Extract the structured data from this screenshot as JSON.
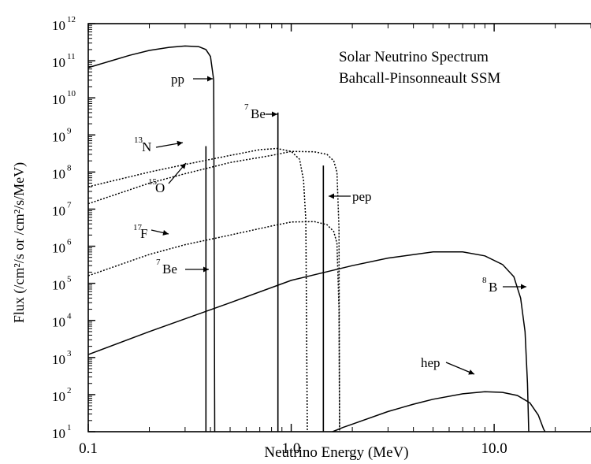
{
  "chart_data": {
    "type": "line",
    "title": "Solar Neutrino Spectrum",
    "subtitle": "Bahcall-Pinsonneault SSM",
    "xlabel": "Neutrino Energy (MeV)",
    "ylabel": "Flux (/cm²/s or /cm²/s/MeV)",
    "x_scale": "log",
    "y_scale": "log",
    "xlim": [
      0.1,
      30
    ],
    "ylim": [
      10,
      1000000000000.0
    ],
    "grid": false,
    "legend": "none",
    "x_ticks": [
      {
        "value": 0.1,
        "label": "0.1"
      },
      {
        "value": 1,
        "label": "1.0"
      },
      {
        "value": 10,
        "label": "10.0"
      }
    ],
    "y_ticks": [
      {
        "value": 10.0,
        "base": "10",
        "exp": "1"
      },
      {
        "value": 100.0,
        "base": "10",
        "exp": "2"
      },
      {
        "value": 1000.0,
        "base": "10",
        "exp": "3"
      },
      {
        "value": 10000.0,
        "base": "10",
        "exp": "4"
      },
      {
        "value": 100000.0,
        "base": "10",
        "exp": "5"
      },
      {
        "value": 1000000.0,
        "base": "10",
        "exp": "6"
      },
      {
        "value": 10000000.0,
        "base": "10",
        "exp": "7"
      },
      {
        "value": 100000000.0,
        "base": "10",
        "exp": "8"
      },
      {
        "value": 1000000000.0,
        "base": "10",
        "exp": "9"
      },
      {
        "value": 10000000000.0,
        "base": "10",
        "exp": "10"
      },
      {
        "value": 100000000000.0,
        "base": "10",
        "exp": "11"
      },
      {
        "value": 1000000000000.0,
        "base": "10",
        "exp": "12"
      }
    ],
    "series": [
      {
        "id": "pp",
        "label": "pp",
        "style": "solid",
        "points": [
          [
            0.1,
            65000000000.0
          ],
          [
            0.13,
            100000000000.0
          ],
          [
            0.16,
            140000000000.0
          ],
          [
            0.2,
            190000000000.0
          ],
          [
            0.25,
            230000000000.0
          ],
          [
            0.3,
            250000000000.0
          ],
          [
            0.35,
            240000000000.0
          ],
          [
            0.38,
            200000000000.0
          ],
          [
            0.4,
            130000000000.0
          ],
          [
            0.415,
            30000000000.0
          ],
          [
            0.42,
            10
          ]
        ]
      },
      {
        "id": "n13",
        "label": "N",
        "label_sup": "13",
        "style": "dotted",
        "points": [
          [
            0.1,
            40000000.0
          ],
          [
            0.2,
            100000000.0
          ],
          [
            0.3,
            160000000.0
          ],
          [
            0.5,
            280000000.0
          ],
          [
            0.7,
            400000000.0
          ],
          [
            0.85,
            430000000.0
          ],
          [
            1.0,
            360000000.0
          ],
          [
            1.1,
            220000000.0
          ],
          [
            1.15,
            60000000.0
          ],
          [
            1.18,
            5000000.0
          ],
          [
            1.2,
            10
          ]
        ]
      },
      {
        "id": "o15",
        "label": "O",
        "label_sup": "15",
        "style": "dotted",
        "points": [
          [
            0.1,
            14000000.0
          ],
          [
            0.2,
            50000000.0
          ],
          [
            0.3,
            90000000.0
          ],
          [
            0.5,
            180000000.0
          ],
          [
            0.8,
            280000000.0
          ],
          [
            1.0,
            360000000.0
          ],
          [
            1.3,
            350000000.0
          ],
          [
            1.5,
            300000000.0
          ],
          [
            1.62,
            200000000.0
          ],
          [
            1.68,
            100000000.0
          ],
          [
            1.72,
            3000000.0
          ],
          [
            1.73,
            10
          ]
        ]
      },
      {
        "id": "f17",
        "label": "F",
        "label_sup": "17",
        "style": "dotted",
        "points": [
          [
            0.1,
            160000.0
          ],
          [
            0.2,
            600000.0
          ],
          [
            0.3,
            1100000.0
          ],
          [
            0.5,
            2000000.0
          ],
          [
            0.8,
            3500000.0
          ],
          [
            1.0,
            4500000.0
          ],
          [
            1.3,
            4600000.0
          ],
          [
            1.5,
            3800000.0
          ],
          [
            1.62,
            2500000.0
          ],
          [
            1.68,
            1200000.0
          ],
          [
            1.72,
            20000.0
          ],
          [
            1.73,
            10
          ]
        ]
      },
      {
        "id": "b8",
        "label": "B",
        "label_sup": "8",
        "style": "solid",
        "points": [
          [
            0.1,
            1200.0
          ],
          [
            0.2,
            5000.0
          ],
          [
            0.5,
            30000.0
          ],
          [
            1.0,
            120000.0
          ],
          [
            2.0,
            300000.0
          ],
          [
            3.0,
            480000.0
          ],
          [
            5.0,
            700000.0
          ],
          [
            7.0,
            700000.0
          ],
          [
            9.0,
            550000.0
          ],
          [
            11.0,
            320000.0
          ],
          [
            12.5,
            150000.0
          ],
          [
            13.5,
            40000.0
          ],
          [
            14.2,
            5000.0
          ],
          [
            14.6,
            200
          ],
          [
            14.8,
            10
          ]
        ]
      },
      {
        "id": "hep",
        "label": "hep",
        "style": "solid",
        "points": [
          [
            1.6,
            10
          ],
          [
            1.8,
            13
          ],
          [
            2.0,
            16
          ],
          [
            3.0,
            35
          ],
          [
            4.0,
            55
          ],
          [
            5.0,
            75
          ],
          [
            7.0,
            105
          ],
          [
            9.0,
            120
          ],
          [
            11.0,
            115
          ],
          [
            13.0,
            95
          ],
          [
            15.0,
            60
          ],
          [
            16.5,
            28
          ],
          [
            17.5,
            12
          ],
          [
            17.8,
            10
          ]
        ]
      }
    ],
    "lines": [
      {
        "id": "pep",
        "label": "pep",
        "energy": 1.44,
        "flux": 150000000.0
      },
      {
        "id": "be7-high",
        "label": "Be",
        "label_sup": "7",
        "energy": 0.86,
        "flux": 4000000000.0
      },
      {
        "id": "be7-low",
        "label": "Be",
        "label_sup": "7",
        "energy": 0.38,
        "flux": 500000000.0
      }
    ]
  }
}
